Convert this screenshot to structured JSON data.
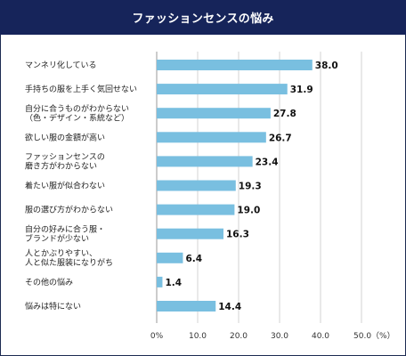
{
  "chart_data": {
    "type": "bar",
    "orientation": "horizontal",
    "title": "ファッションセンスの悩み",
    "categories": [
      [
        "マンネリ化している"
      ],
      [
        "手持ちの服を上手く気回せない"
      ],
      [
        "自分に合うものがわからない",
        "（色・デザイン・系統など）"
      ],
      [
        "欲しい服の金額が高い"
      ],
      [
        "ファッションセンスの",
        "磨き方がわからない"
      ],
      [
        "着たい服が似合わない"
      ],
      [
        "服の選び方がわからない"
      ],
      [
        "自分の好みに合う服・",
        "ブランドが少ない"
      ],
      [
        "人とかぶりやすい、",
        "人と似た服装になりがち"
      ],
      [
        "その他の悩み"
      ],
      [
        "悩みは特にない"
      ]
    ],
    "values": [
      38.0,
      31.9,
      27.8,
      26.7,
      23.4,
      19.3,
      19.0,
      16.3,
      6.4,
      1.4,
      14.4
    ],
    "value_labels": [
      "38.0",
      "31.9",
      "27.8",
      "26.7",
      "23.4",
      "19.3",
      "19.0",
      "16.3",
      "6.4",
      "1.4",
      "14.4"
    ],
    "xlim": [
      0,
      50
    ],
    "x_ticks": [
      "0%",
      "10.0",
      "20.0",
      "30.0",
      "40.0",
      "50.0（%）"
    ],
    "bar_color": "#79bfe0",
    "grid": true
  },
  "colors": {
    "title_bg": "#16245a",
    "title_text": "#ffffff",
    "border": "#1d2b52",
    "grid": "#c8c8c8"
  }
}
